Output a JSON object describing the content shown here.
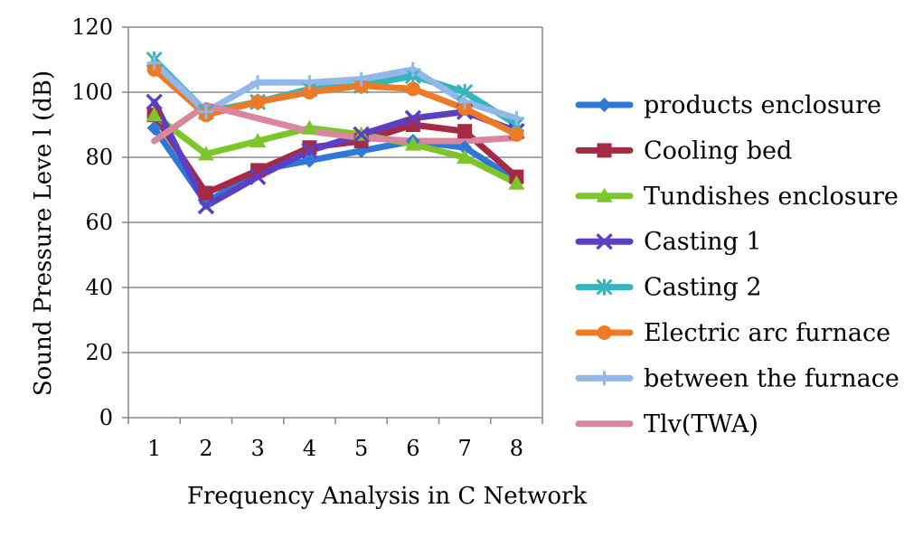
{
  "chart_data": {
    "type": "line",
    "title": "",
    "xlabel": "Frequency  Analysis in C Network",
    "ylabel": "Sound Pressure Leve l (dB)",
    "categories": [
      "1",
      "2",
      "3",
      "4",
      "5",
      "6",
      "7",
      "8"
    ],
    "ylim": [
      0,
      120
    ],
    "yticks": [
      0,
      20,
      40,
      60,
      80,
      100,
      120
    ],
    "grid": "horizontal",
    "legend_position": "right",
    "series": [
      {
        "name": "products enclosure",
        "color": "#2e78d6",
        "marker": "diamond",
        "values": [
          89,
          66,
          76,
          79,
          82,
          85,
          83,
          73
        ]
      },
      {
        "name": "Cooling bed",
        "color": "#a52a45",
        "marker": "square",
        "values": [
          93,
          69,
          76,
          83,
          85,
          90,
          88,
          74
        ]
      },
      {
        "name": "Tundishes enclosure",
        "color": "#7cc62c",
        "marker": "triangle",
        "values": [
          93,
          81,
          85,
          89,
          87,
          84,
          80,
          72
        ]
      },
      {
        "name": "Casting 1",
        "color": "#5b3fc4",
        "marker": "x",
        "values": [
          97,
          65,
          74,
          82,
          87,
          92,
          94,
          88
        ]
      },
      {
        "name": "Casting 2",
        "color": "#35b5bd",
        "marker": "star",
        "values": [
          110,
          94,
          97,
          101,
          102,
          105,
          100,
          90
        ]
      },
      {
        "name": "Electric arc furnace",
        "color": "#ee7a26",
        "marker": "circle",
        "values": [
          107,
          93,
          97,
          100,
          102,
          101,
          95,
          87
        ]
      },
      {
        "name": " between the furnace",
        "color": "#92b8ea",
        "marker": "plus",
        "values": [
          109,
          94,
          103,
          103,
          104,
          107,
          97,
          92
        ]
      },
      {
        "name": "Tlv(TWA)",
        "color": "#d9869f",
        "marker": "none",
        "values": [
          85,
          96,
          92,
          88,
          86,
          85,
          85,
          86
        ]
      }
    ]
  }
}
